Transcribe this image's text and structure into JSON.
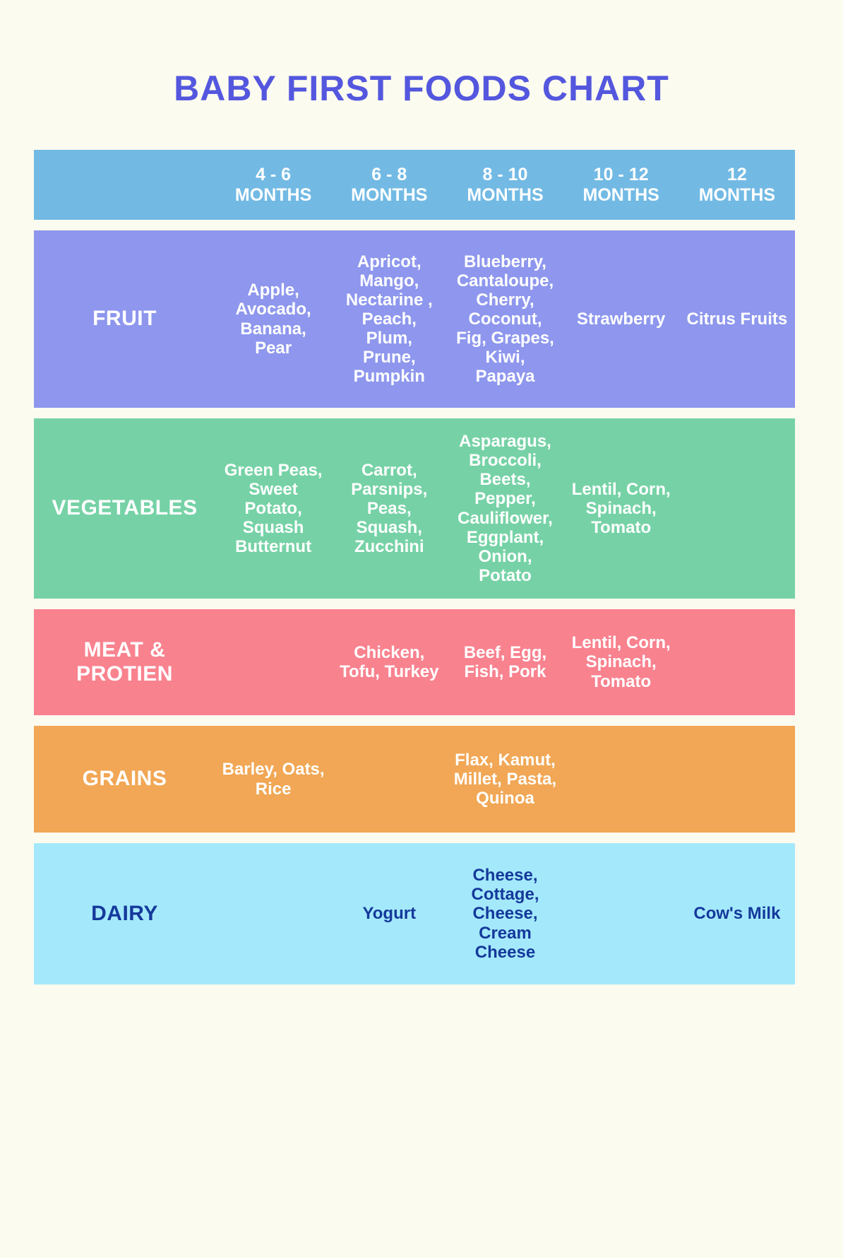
{
  "title": {
    "text": "BABY FIRST FOODS CHART"
  },
  "chart_data": {
    "type": "table",
    "title": "BABY FIRST FOODS CHART",
    "columns": [
      "4 - 6\nMONTHS",
      "6 - 8\nMONTHS",
      "8 - 10\nMONTHS",
      "10 - 12\nMONTHS",
      "12\nMONTHS"
    ],
    "rows": [
      {
        "category": "FRUIT",
        "values": [
          "Apple, Avocado, Banana, Pear",
          "Apricot, Mango, Nectarine , Peach, Plum, Prune, Pumpkin",
          "Blueberry, Cantaloupe, Cherry, Coconut, Fig, Grapes, Kiwi, Papaya",
          "Strawberry",
          "Citrus Fruits"
        ]
      },
      {
        "category": "VEGETABLES",
        "values": [
          "Green Peas, Sweet Potato, Squash Butternut",
          "Carrot, Parsnips, Peas, Squash, Zucchini",
          "Asparagus, Broccoli, Beets, Pepper, Cauliflower, Eggplant, Onion, Potato",
          "Lentil, Corn, Spinach, Tomato",
          ""
        ]
      },
      {
        "category": "MEAT & PROTIEN",
        "values": [
          "",
          "Chicken, Tofu, Turkey",
          "Beef, Egg, Fish, Pork",
          "Lentil, Corn, Spinach, Tomato",
          ""
        ]
      },
      {
        "category": "GRAINS",
        "values": [
          "Barley, Oats, Rice",
          "",
          "Flax, Kamut, Millet, Pasta, Quinoa",
          "",
          ""
        ]
      },
      {
        "category": "DAIRY",
        "values": [
          "",
          "Yogurt",
          "Cheese, Cottage, Cheese, Cream Cheese",
          "",
          "Cow's Milk"
        ]
      }
    ]
  },
  "style": {
    "page_bg": "#FCFBEF",
    "title_color": "#5457DE",
    "header_bg": "#72BAE4",
    "header_text": "#FFFFFF",
    "fruit_bg": "#8E97ED",
    "vegetables_bg": "#76D2A6",
    "meat_bg": "#F9828F",
    "grains_bg": "#F1A755",
    "dairy_bg": "#A4E9FB",
    "row_text": "#FFFFFF",
    "dairy_text": "#14399B"
  }
}
